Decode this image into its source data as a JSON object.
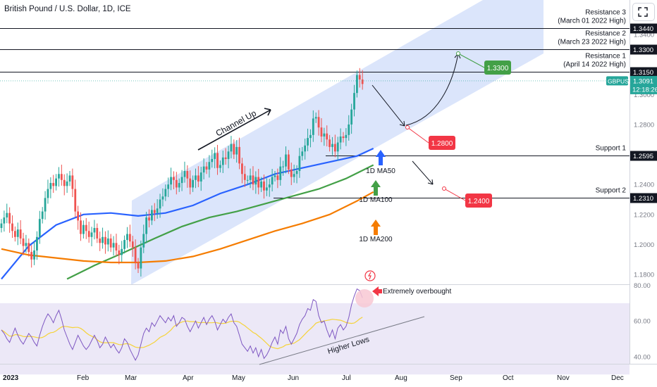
{
  "header": {
    "title": "British Pound / U.S. Dollar, 1D, ICE",
    "expand_icon": "fullscreen-icon"
  },
  "colors": {
    "channel": "#dbe5fb",
    "candle_up": "#26a69a",
    "candle_down": "#ef5350",
    "ma50": "#2962ff",
    "ma100": "#43a047",
    "ma200": "#f57c00",
    "rsi": "#7e57c2",
    "rsi_ma": "#f5d33a",
    "rsi_band": "#ece8f7",
    "green_label": "#43a047",
    "red_label": "#f23645"
  },
  "chart_data": [
    {
      "type": "candlestick",
      "symbol": "GBPUSD",
      "x_ticks": [
        "2023",
        "Feb",
        "Mar",
        "Apr",
        "May",
        "Jun",
        "Jul",
        "Aug",
        "Sep",
        "Oct",
        "Nov",
        "Dec"
      ],
      "y_ticks": [
        "1.3400",
        "1.3000",
        "1.2800",
        "1.2600",
        "1.2400",
        "1.2200",
        "1.2000",
        "1.1800"
      ],
      "ylim": [
        1.173,
        1.363
      ],
      "last_price": "1.3091",
      "countdown": "12:18:26",
      "levels": [
        {
          "name": "Resistance 3",
          "sub": "(March 01 2022 High)",
          "value": "1.3440"
        },
        {
          "name": "Resistance 2",
          "sub": "(March 23 2022 High)",
          "value": "1.3300"
        },
        {
          "name": "Resistance 1",
          "sub": "(April 14 2022 High)",
          "value": "1.3150"
        },
        {
          "name": "Support 1",
          "sub": "",
          "value": "1.2595"
        },
        {
          "name": "Support 2",
          "sub": "",
          "value": "1.2310"
        }
      ],
      "targets": [
        {
          "label": "1.3300",
          "price": 1.33
        },
        {
          "label": "1.2800",
          "price": 1.281
        },
        {
          "label": "1.2400",
          "price": 1.241
        }
      ],
      "moving_averages": [
        {
          "name": "1D MA50",
          "points": [
            [
              0,
              1.177
            ],
            [
              10,
              1.199
            ],
            [
              20,
              1.213
            ],
            [
              30,
              1.22
            ],
            [
              40,
              1.221
            ],
            [
              50,
              1.219
            ],
            [
              60,
              1.221
            ],
            [
              70,
              1.226
            ],
            [
              80,
              1.234
            ],
            [
              90,
              1.24
            ],
            [
              100,
              1.247
            ],
            [
              110,
              1.251
            ],
            [
              120,
              1.255
            ],
            [
              130,
              1.259
            ],
            [
              136,
              1.264
            ]
          ]
        },
        {
          "name": "1D MA100",
          "points": [
            [
              24,
              1.177
            ],
            [
              34,
              1.186
            ],
            [
              44,
              1.194
            ],
            [
              56,
              1.204
            ],
            [
              66,
              1.212
            ],
            [
              76,
              1.218
            ],
            [
              86,
              1.222
            ],
            [
              96,
              1.227
            ],
            [
              106,
              1.232
            ],
            [
              116,
              1.237
            ],
            [
              126,
              1.244
            ],
            [
              136,
              1.253
            ]
          ]
        },
        {
          "name": "1D MA200",
          "points": [
            [
              0,
              1.197
            ],
            [
              10,
              1.193
            ],
            [
              20,
              1.191
            ],
            [
              30,
              1.189
            ],
            [
              40,
              1.188
            ],
            [
              50,
              1.188
            ],
            [
              60,
              1.189
            ],
            [
              70,
              1.192
            ],
            [
              80,
              1.197
            ],
            [
              90,
              1.203
            ],
            [
              100,
              1.209
            ],
            [
              110,
              1.214
            ],
            [
              120,
              1.22
            ],
            [
              130,
              1.229
            ],
            [
              136,
              1.235
            ]
          ]
        }
      ],
      "annotations": [
        "Channel Up",
        "1D MA50",
        "1D MA100",
        "1D MA200"
      ],
      "closes": [
        1.214,
        1.218,
        1.221,
        1.214,
        1.209,
        1.205,
        1.21,
        1.204,
        1.199,
        1.201,
        1.195,
        1.19,
        1.196,
        1.205,
        1.217,
        1.222,
        1.231,
        1.237,
        1.241,
        1.239,
        1.244,
        1.247,
        1.243,
        1.239,
        1.242,
        1.246,
        1.237,
        1.222,
        1.216,
        1.207,
        1.213,
        1.209,
        1.205,
        1.208,
        1.211,
        1.204,
        1.201,
        1.205,
        1.2,
        1.204,
        1.198,
        1.201,
        1.196,
        1.193,
        1.197,
        1.203,
        1.207,
        1.202,
        1.198,
        1.188,
        1.184,
        1.198,
        1.207,
        1.218,
        1.216,
        1.223,
        1.221,
        1.224,
        1.23,
        1.232,
        1.237,
        1.24,
        1.245,
        1.243,
        1.238,
        1.241,
        1.245,
        1.249,
        1.244,
        1.238,
        1.243,
        1.246,
        1.242,
        1.248,
        1.252,
        1.25,
        1.255,
        1.257,
        1.261,
        1.251,
        1.253,
        1.258,
        1.257,
        1.262,
        1.267,
        1.26,
        1.265,
        1.254,
        1.247,
        1.243,
        1.243,
        1.246,
        1.24,
        1.245,
        1.238,
        1.242,
        1.236,
        1.238,
        1.24,
        1.245,
        1.246,
        1.243,
        1.252,
        1.252,
        1.26,
        1.25,
        1.245,
        1.247,
        1.249,
        1.259,
        1.262,
        1.266,
        1.271,
        1.273,
        1.284,
        1.285,
        1.278,
        1.272,
        1.274,
        1.27,
        1.265,
        1.267,
        1.262,
        1.268,
        1.272,
        1.271,
        1.273,
        1.28,
        1.29,
        1.301,
        1.313,
        1.31,
        1.307
      ],
      "rsi": {
        "y_ticks": [
          "80.00",
          "60.00",
          "40.00"
        ],
        "ylim": [
          36,
          81
        ],
        "band": [
          30,
          70
        ],
        "annotations": [
          "Extremely overbought",
          "Higher Lows"
        ]
      }
    }
  ]
}
